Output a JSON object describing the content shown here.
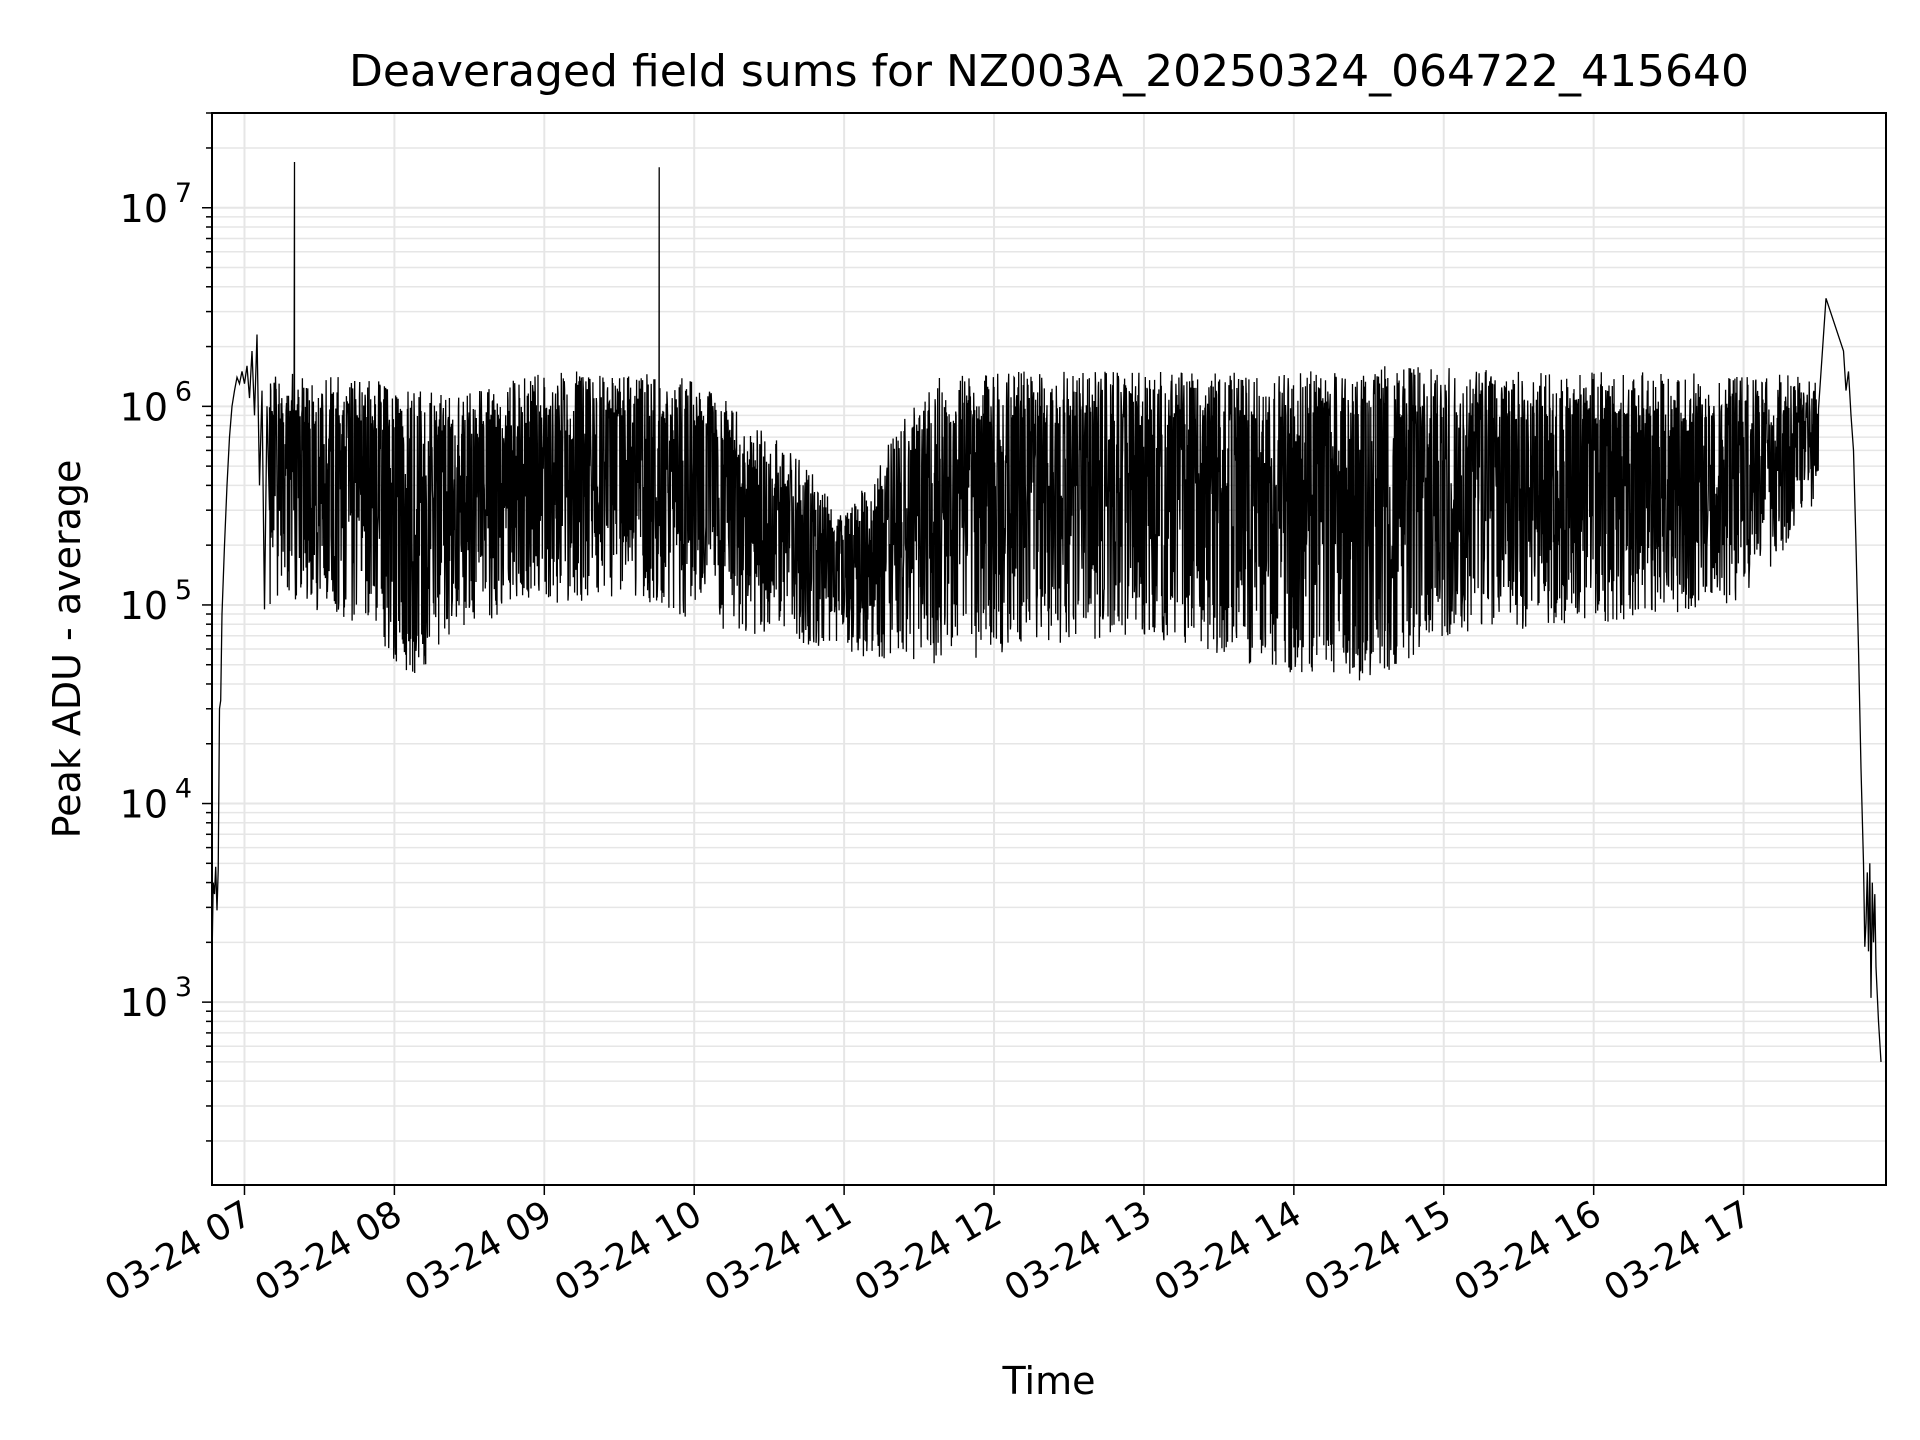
{
  "chart_data": {
    "type": "line",
    "title": "Deaveraged field sums for NZ003A_20250324_064722_415640",
    "xlabel": "Time",
    "ylabel": "Peak ADU - average",
    "yscale": "log",
    "ylim": [
      120,
      30000000
    ],
    "xlim": [
      "2025-03-24T06:47:00",
      "2025-03-24T17:57:00"
    ],
    "grid": true,
    "line_color": "#000000",
    "grid_color": "#e6e6e6",
    "x_ticks": [
      {
        "t": "2025-03-24T07:00:00",
        "label": "03-24 07"
      },
      {
        "t": "2025-03-24T08:00:00",
        "label": "03-24 08"
      },
      {
        "t": "2025-03-24T09:00:00",
        "label": "03-24 09"
      },
      {
        "t": "2025-03-24T10:00:00",
        "label": "03-24 10"
      },
      {
        "t": "2025-03-24T11:00:00",
        "label": "03-24 11"
      },
      {
        "t": "2025-03-24T12:00:00",
        "label": "03-24 12"
      },
      {
        "t": "2025-03-24T13:00:00",
        "label": "03-24 13"
      },
      {
        "t": "2025-03-24T14:00:00",
        "label": "03-24 14"
      },
      {
        "t": "2025-03-24T15:00:00",
        "label": "03-24 15"
      },
      {
        "t": "2025-03-24T16:00:00",
        "label": "03-24 16"
      },
      {
        "t": "2025-03-24T17:00:00",
        "label": "03-24 17"
      }
    ],
    "y_ticks": [
      {
        "v": 1000,
        "base": "10",
        "exp": "3"
      },
      {
        "v": 10000,
        "base": "10",
        "exp": "4"
      },
      {
        "v": 100000,
        "base": "10",
        "exp": "5"
      },
      {
        "v": 1000000,
        "base": "10",
        "exp": "6"
      },
      {
        "v": 10000000,
        "base": "10",
        "exp": "7"
      }
    ],
    "series": [
      {
        "points": [
          [
            "2025-03-24T06:47:00",
            1600
          ],
          [
            "2025-03-24T06:47:30",
            4000
          ],
          [
            "2025-03-24T06:48:00",
            3500
          ],
          [
            "2025-03-24T06:48:30",
            4800
          ],
          [
            "2025-03-24T06:49:00",
            2900
          ],
          [
            "2025-03-24T06:49:30",
            4600
          ],
          [
            "2025-03-24T06:50:00",
            30000
          ],
          [
            "2025-03-24T06:50:30",
            33000
          ],
          [
            "2025-03-24T06:51:00",
            90000
          ],
          [
            "2025-03-24T06:52:00",
            200000
          ],
          [
            "2025-03-24T06:53:00",
            400000
          ],
          [
            "2025-03-24T06:54:00",
            700000
          ],
          [
            "2025-03-24T06:55:00",
            1000000
          ],
          [
            "2025-03-24T06:56:00",
            1200000
          ],
          [
            "2025-03-24T06:57:00",
            1400000
          ],
          [
            "2025-03-24T06:58:00",
            1300000
          ],
          [
            "2025-03-24T06:59:00",
            1500000
          ],
          [
            "2025-03-24T07:00:00",
            1300000
          ],
          [
            "2025-03-24T07:01:00",
            1600000
          ],
          [
            "2025-03-24T07:02:00",
            1100000
          ],
          [
            "2025-03-24T07:03:00",
            1900000
          ],
          [
            "2025-03-24T07:04:00",
            900000
          ],
          [
            "2025-03-24T07:05:00",
            2300000
          ],
          [
            "2025-03-24T07:06:00",
            400000
          ],
          [
            "2025-03-24T07:07:00",
            1200000
          ],
          [
            "2025-03-24T07:08:00",
            95000
          ],
          [
            "2025-03-24T07:09:00",
            1000000
          ],
          [
            "2025-03-24T07:10:00",
            300000
          ]
        ],
        "tail": [
          [
            "2025-03-24T17:40:00",
            1900000
          ],
          [
            "2025-03-24T17:41:00",
            1200000
          ],
          [
            "2025-03-24T17:42:00",
            1500000
          ],
          [
            "2025-03-24T17:43:00",
            900000
          ],
          [
            "2025-03-24T17:44:00",
            600000
          ],
          [
            "2025-03-24T17:45:00",
            200000
          ],
          [
            "2025-03-24T17:46:00",
            60000
          ],
          [
            "2025-03-24T17:47:00",
            15000
          ],
          [
            "2025-03-24T17:48:00",
            5000
          ],
          [
            "2025-03-24T17:48:30",
            1900
          ],
          [
            "2025-03-24T17:49:00",
            2500
          ],
          [
            "2025-03-24T17:49:30",
            4500
          ],
          [
            "2025-03-24T17:50:00",
            1800
          ],
          [
            "2025-03-24T17:50:30",
            5000
          ],
          [
            "2025-03-24T17:51:00",
            1050
          ],
          [
            "2025-03-24T17:51:30",
            4000
          ],
          [
            "2025-03-24T17:52:00",
            2000
          ],
          [
            "2025-03-24T17:52:30",
            3500
          ],
          [
            "2025-03-24T17:53:00",
            1500
          ],
          [
            "2025-03-24T17:54:00",
            800
          ],
          [
            "2025-03-24T17:55:00",
            500
          ]
        ],
        "spikes": [
          [
            "2025-03-24T07:20:00",
            17000000
          ],
          [
            "2025-03-24T09:46:00",
            16000000
          ],
          [
            "2025-03-24T17:33:00",
            3500000
          ]
        ],
        "band_envelope": [
          {
            "t": "2025-03-24T07:10:00",
            "upper": 1500000,
            "lower": 100000
          },
          {
            "t": "2025-03-24T07:50:00",
            "upper": 1400000,
            "lower": 80000
          },
          {
            "t": "2025-03-24T08:05:00",
            "upper": 1200000,
            "lower": 40000
          },
          {
            "t": "2025-03-24T08:30:00",
            "upper": 1200000,
            "lower": 80000
          },
          {
            "t": "2025-03-24T09:00:00",
            "upper": 1500000,
            "lower": 100000
          },
          {
            "t": "2025-03-24T09:30:00",
            "upper": 1500000,
            "lower": 110000
          },
          {
            "t": "2025-03-24T10:00:00",
            "upper": 1400000,
            "lower": 80000
          },
          {
            "t": "2025-03-24T10:40:00",
            "upper": 600000,
            "lower": 65000
          },
          {
            "t": "2025-03-24T11:00:00",
            "upper": 300000,
            "lower": 55000
          },
          {
            "t": "2025-03-24T11:35:00",
            "upper": 1400000,
            "lower": 50000
          },
          {
            "t": "2025-03-24T12:00:00",
            "upper": 1500000,
            "lower": 55000
          },
          {
            "t": "2025-03-24T12:30:00",
            "upper": 1500000,
            "lower": 65000
          },
          {
            "t": "2025-03-24T13:00:00",
            "upper": 1500000,
            "lower": 70000
          },
          {
            "t": "2025-03-24T13:30:00",
            "upper": 1500000,
            "lower": 55000
          },
          {
            "t": "2025-03-24T14:00:00",
            "upper": 1500000,
            "lower": 45000
          },
          {
            "t": "2025-03-24T14:30:00",
            "upper": 1600000,
            "lower": 40000
          },
          {
            "t": "2025-03-24T15:00:00",
            "upper": 1600000,
            "lower": 70000
          },
          {
            "t": "2025-03-24T15:30:00",
            "upper": 1500000,
            "lower": 75000
          },
          {
            "t": "2025-03-24T16:00:00",
            "upper": 1500000,
            "lower": 80000
          },
          {
            "t": "2025-03-24T16:30:00",
            "upper": 1500000,
            "lower": 90000
          },
          {
            "t": "2025-03-24T17:00:00",
            "upper": 1400000,
            "lower": 100000
          },
          {
            "t": "2025-03-24T17:30:00",
            "upper": 1500000,
            "lower": 300000
          }
        ]
      }
    ]
  }
}
